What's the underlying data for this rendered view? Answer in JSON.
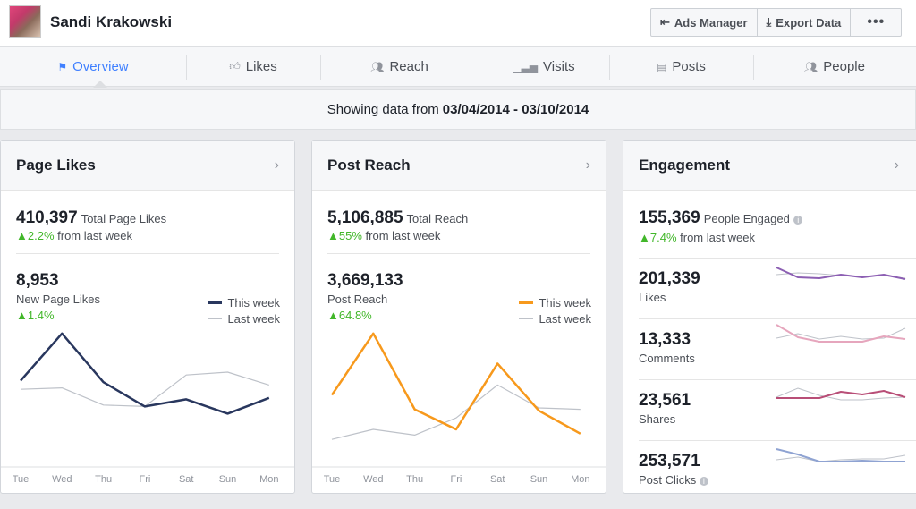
{
  "header": {
    "name": "Sandi Krakowski",
    "buttons": [
      "Ads Manager",
      "Export Data",
      "•••"
    ]
  },
  "nav": {
    "tabs": [
      {
        "label": "Overview",
        "icon": "flag-icon"
      },
      {
        "label": "Likes",
        "icon": "thumbs-up-icon"
      },
      {
        "label": "Reach",
        "icon": "people-icon"
      },
      {
        "label": "Visits",
        "icon": "bar-chart-icon"
      },
      {
        "label": "Posts",
        "icon": "posts-icon"
      },
      {
        "label": "People",
        "icon": "group-icon"
      }
    ],
    "active": "Overview"
  },
  "datebar": {
    "prefix": "Showing data from",
    "range": "03/04/2014 - 03/10/2014"
  },
  "colors": {
    "likes_this_week": "#29375e",
    "reach_this_week": "#f7991c",
    "last_week": "#bec2c9",
    "positive": "#42b72a",
    "accent": "#4080ff"
  },
  "page_likes": {
    "title": "Page Likes",
    "total": "410,397",
    "total_label": "Total Page Likes",
    "change": "2.2%",
    "change_label": "from last week",
    "new": "8,953",
    "new_label": "New Page Likes",
    "new_change": "1.4%"
  },
  "post_reach": {
    "title": "Post Reach",
    "total": "5,106,885",
    "total_label": "Total Reach",
    "change": "55%",
    "change_label": "from last week",
    "sub": "3,669,133",
    "sub_label": "Post Reach",
    "sub_change": "64.8%"
  },
  "legend": {
    "this_week": "This week",
    "last_week": "Last week"
  },
  "engagement": {
    "title": "Engagement",
    "total": "155,369",
    "total_label": "People Engaged",
    "change": "7.4%",
    "change_label": "from last week",
    "rows": [
      {
        "value": "201,339",
        "label": "Likes",
        "color": "#8c5fb3",
        "this": [
          80,
          25,
          20,
          40,
          25,
          40,
          15
        ],
        "last": [
          40,
          50,
          45,
          35,
          30,
          35,
          20
        ]
      },
      {
        "value": "13,333",
        "label": "Comments",
        "color": "#e6a6bd",
        "this": [
          100,
          30,
          5,
          5,
          5,
          35,
          20
        ],
        "last": [
          25,
          50,
          20,
          35,
          20,
          25,
          80
        ]
      },
      {
        "value": "23,561",
        "label": "Shares",
        "color": "#b84e77",
        "this": [
          30,
          30,
          30,
          65,
          50,
          70,
          35
        ],
        "last": [
          35,
          85,
          45,
          20,
          20,
          30,
          35
        ]
      },
      {
        "value": "253,571",
        "label": "Post Clicks",
        "color": "#8fa3d2",
        "this": [
          85,
          55,
          15,
          15,
          20,
          15,
          15
        ],
        "last": [
          25,
          40,
          15,
          25,
          30,
          30,
          50
        ]
      }
    ]
  },
  "chart_data": [
    {
      "type": "line",
      "categories": [
        "Tue",
        "Wed",
        "Thu",
        "Fri",
        "Sat",
        "Sun",
        "Mon"
      ],
      "series": [
        {
          "name": "This week",
          "values": [
            59,
            92,
            58,
            41,
            46,
            36,
            47
          ]
        },
        {
          "name": "Last week",
          "values": [
            53,
            54,
            42,
            41,
            63,
            65,
            56
          ]
        }
      ],
      "grid": false,
      "legend": "top-right"
    },
    {
      "type": "line",
      "categories": [
        "Tue",
        "Wed",
        "Thu",
        "Fri",
        "Sat",
        "Sun",
        "Mon"
      ],
      "series": [
        {
          "name": "This week",
          "values": [
            49,
            92,
            39,
            25,
            71,
            38,
            22
          ]
        },
        {
          "name": "Last week",
          "values": [
            18,
            25,
            21,
            33,
            56,
            40,
            39
          ]
        }
      ],
      "grid": false,
      "legend": "top-right"
    }
  ]
}
